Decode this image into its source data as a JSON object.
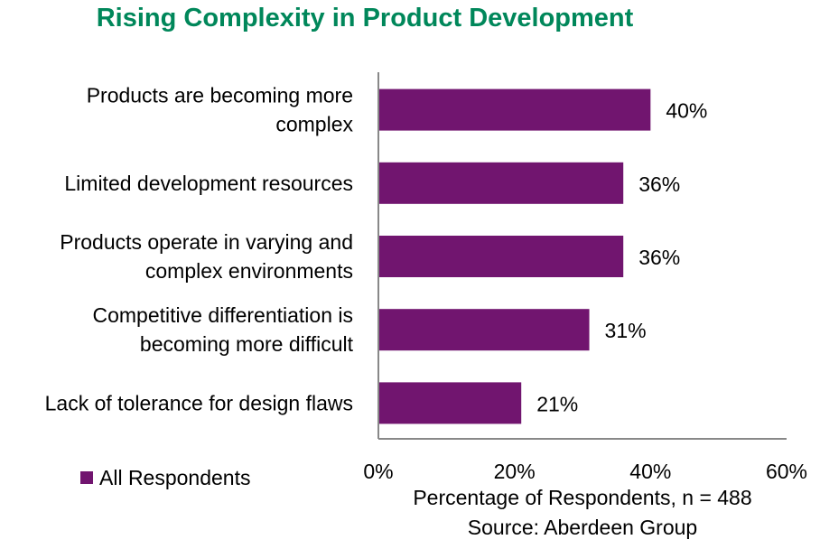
{
  "chart_data": {
    "type": "bar",
    "orientation": "horizontal",
    "title": "Rising Complexity in Product Development",
    "categories": [
      [
        "Products are becoming more",
        "complex"
      ],
      [
        "Limited development resources"
      ],
      [
        "Products operate in varying and",
        "complex environments"
      ],
      [
        "Competitive differentiation is",
        "becoming more difficult"
      ],
      [
        "Lack of tolerance for design flaws"
      ]
    ],
    "series": [
      {
        "name": "All Respondents",
        "values": [
          40,
          36,
          36,
          31,
          21
        ],
        "color": "#71156F"
      }
    ],
    "data_labels": [
      "40%",
      "36%",
      "36%",
      "31%",
      "21%"
    ],
    "xlim": [
      0,
      60
    ],
    "xticks": [
      0,
      20,
      40,
      60
    ],
    "xtick_labels": [
      "0%",
      "20%",
      "40%",
      "60%"
    ],
    "xlabel": "Percentage of Respondents, n = 488",
    "source": "Source: Aberdeen Group",
    "legend_position": "bottom-left",
    "grid": false
  }
}
